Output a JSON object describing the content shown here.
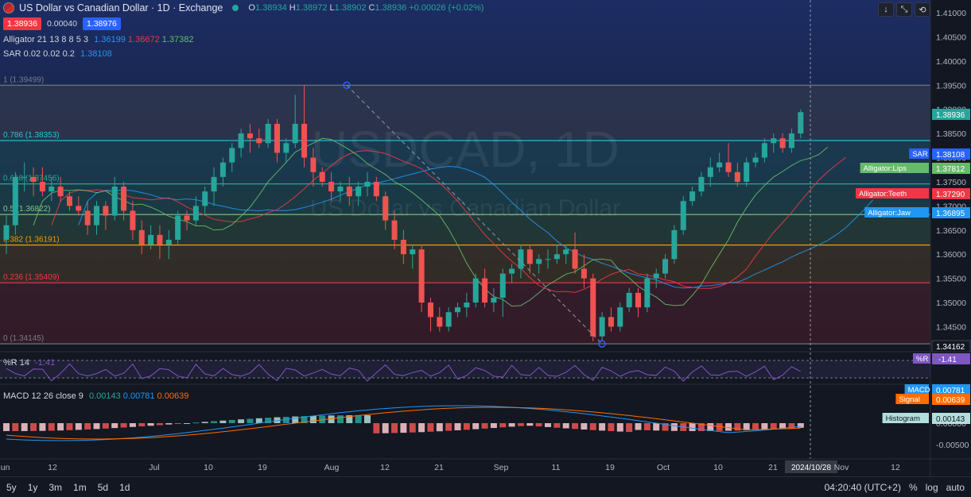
{
  "header": {
    "title": "US Dollar vs Canadian Dollar · 1D · Exchange",
    "open_label": "O",
    "open": "1.38934",
    "high_label": "H",
    "high": "1.38972",
    "low_label": "L",
    "low": "1.38902",
    "close_label": "C",
    "close": "1.38936",
    "change": "+0.00026 (+0.02%)",
    "sell": "1.38936",
    "spread": "0.00040",
    "buy": "1.38976"
  },
  "indicators": {
    "alligator": {
      "label": "Alligator 21 13 8 8 5 3",
      "jaw": "1.36199",
      "teeth": "1.36672",
      "lips": "1.37382"
    },
    "sar": {
      "label": "SAR 0.02 0.02 0.2",
      "value": "1.38108"
    },
    "wr": {
      "label": "%R 14",
      "value": "-1.41",
      "tag": "%R"
    },
    "macd": {
      "label": "MACD 12 26 close 9",
      "hist": "0.00143",
      "macd": "0.00781",
      "signal": "0.00639"
    }
  },
  "watermark": {
    "symbol": "USDCAD, 1D",
    "name": "US Dollar vs Canadian Dollar"
  },
  "colors": {
    "up": "#26a69a",
    "down": "#ef5350",
    "jaw": "#2196f3",
    "teeth": "#f23645",
    "lips": "#66bb6a",
    "wr": "#7e57c2",
    "macd": "#2196f3",
    "signal": "#ff6d00"
  },
  "toolbar": {
    "buttons": [
      "↓",
      "⤡",
      "⟲"
    ]
  },
  "bottom": {
    "ranges": [
      "5y",
      "1y",
      "3m",
      "1m",
      "5d",
      "1d"
    ],
    "time": "04:20:40 (UTC+2)",
    "percent": "%",
    "log": "log",
    "auto": "auto"
  },
  "chart_data": {
    "type": "candlestick",
    "price_axis": [
      "1.41000",
      "1.40500",
      "1.40000",
      "1.39500",
      "1.39000",
      "1.38500",
      "1.38000",
      "1.37500",
      "1.37000",
      "1.36500",
      "1.36000",
      "1.35500",
      "1.35000",
      "1.34500"
    ],
    "time_axis": [
      "Jun",
      "12",
      "Jul",
      "10",
      "19",
      "Aug",
      "12",
      "21",
      "Sep",
      "11",
      "19",
      "Oct",
      "10",
      "21",
      "2024/10/28",
      "Nov",
      "12"
    ],
    "fib_levels": [
      {
        "ratio": "1",
        "price": "1.39499",
        "label": "1 (1.39499)",
        "color": "#787b86"
      },
      {
        "ratio": "0.786",
        "price": "1.38353",
        "label": "0.786 (1.38353)",
        "color": "#26c6da"
      },
      {
        "ratio": "0.618",
        "price": "1.37456",
        "label": "0.618 (1.37456)",
        "color": "#26a69a"
      },
      {
        "ratio": "0.5",
        "price": "1.36822",
        "label": "0.5 (1.36822)",
        "color": "#81c784"
      },
      {
        "ratio": "0.382",
        "price": "1.36191",
        "label": "0.382 (1.36191)",
        "color": "#ff9800"
      },
      {
        "ratio": "0.236",
        "price": "1.35409",
        "label": "0.236 (1.35409)",
        "color": "#f23645"
      },
      {
        "ratio": "0",
        "price": "1.34145",
        "label": "0 (1.34145)",
        "color": "#787b86"
      }
    ],
    "price_tags": [
      {
        "label": "",
        "value": "1.38936",
        "color": "#26a69a"
      },
      {
        "label": "SAR",
        "value": "1.38108",
        "color": "#2962ff"
      },
      {
        "label": "Alligator:Lips",
        "value": "1.37812",
        "color": "#66bb6a"
      },
      {
        "label": "Alligator:Teeth",
        "value": "1.37290",
        "color": "#f23645"
      },
      {
        "label": "Alligator:Jaw",
        "value": "1.36895",
        "color": "#2196f3"
      },
      {
        "label": "",
        "value": "1.34162",
        "color": "#131722"
      }
    ],
    "macd_axis": [
      "0.00000",
      "-0.00500"
    ],
    "macd_tags": [
      {
        "label": "MACD",
        "value": "0.00781",
        "color": "#2196f3"
      },
      {
        "label": "Signal",
        "value": "0.00639",
        "color": "#ff6d00"
      },
      {
        "label": "Histogram",
        "value": "0.00143",
        "color": "#b2dfdb"
      }
    ],
    "candles": [
      [
        1.363,
        1.368,
        1.36,
        1.366
      ],
      [
        1.366,
        1.377,
        1.364,
        1.376
      ],
      [
        1.376,
        1.379,
        1.373,
        1.376
      ],
      [
        1.376,
        1.378,
        1.372,
        1.375
      ],
      [
        1.375,
        1.378,
        1.372,
        1.373
      ],
      [
        1.373,
        1.376,
        1.371,
        1.374
      ],
      [
        1.374,
        1.376,
        1.371,
        1.372
      ],
      [
        1.372,
        1.373,
        1.369,
        1.37
      ],
      [
        1.37,
        1.372,
        1.368,
        1.369
      ],
      [
        1.369,
        1.371,
        1.364,
        1.366
      ],
      [
        1.366,
        1.371,
        1.364,
        1.37
      ],
      [
        1.37,
        1.371,
        1.365,
        1.368
      ],
      [
        1.368,
        1.376,
        1.367,
        1.374
      ],
      [
        1.374,
        1.375,
        1.367,
        1.369
      ],
      [
        1.369,
        1.371,
        1.363,
        1.365
      ],
      [
        1.365,
        1.367,
        1.36,
        1.362
      ],
      [
        1.362,
        1.366,
        1.361,
        1.364
      ],
      [
        1.364,
        1.366,
        1.359,
        1.362
      ],
      [
        1.362,
        1.365,
        1.359,
        1.363
      ],
      [
        1.363,
        1.369,
        1.362,
        1.368
      ],
      [
        1.368,
        1.369,
        1.365,
        1.367
      ],
      [
        1.367,
        1.372,
        1.366,
        1.37
      ],
      [
        1.37,
        1.374,
        1.368,
        1.373
      ],
      [
        1.373,
        1.378,
        1.37,
        1.376
      ],
      [
        1.376,
        1.38,
        1.374,
        1.379
      ],
      [
        1.379,
        1.383,
        1.377,
        1.382
      ],
      [
        1.382,
        1.386,
        1.38,
        1.385
      ],
      [
        1.385,
        1.387,
        1.381,
        1.384
      ],
      [
        1.384,
        1.386,
        1.382,
        1.383
      ],
      [
        1.383,
        1.388,
        1.382,
        1.387
      ],
      [
        1.387,
        1.388,
        1.379,
        1.381
      ],
      [
        1.381,
        1.384,
        1.379,
        1.383
      ],
      [
        1.383,
        1.393,
        1.382,
        1.387
      ],
      [
        1.387,
        1.395,
        1.378,
        1.38
      ],
      [
        1.38,
        1.382,
        1.374,
        1.377
      ],
      [
        1.377,
        1.378,
        1.374,
        1.375
      ],
      [
        1.375,
        1.377,
        1.371,
        1.373
      ],
      [
        1.373,
        1.375,
        1.371,
        1.374
      ],
      [
        1.374,
        1.376,
        1.37,
        1.372
      ],
      [
        1.372,
        1.375,
        1.37,
        1.374
      ],
      [
        1.374,
        1.377,
        1.372,
        1.375
      ],
      [
        1.375,
        1.376,
        1.371,
        1.372
      ],
      [
        1.372,
        1.373,
        1.365,
        1.367
      ],
      [
        1.367,
        1.369,
        1.361,
        1.363
      ],
      [
        1.363,
        1.365,
        1.358,
        1.36
      ],
      [
        1.36,
        1.362,
        1.357,
        1.361
      ],
      [
        1.361,
        1.362,
        1.348,
        1.35
      ],
      [
        1.35,
        1.351,
        1.344,
        1.347
      ],
      [
        1.347,
        1.349,
        1.344,
        1.345
      ],
      [
        1.345,
        1.349,
        1.344,
        1.348
      ],
      [
        1.348,
        1.35,
        1.347,
        1.349
      ],
      [
        1.349,
        1.352,
        1.347,
        1.35
      ],
      [
        1.35,
        1.356,
        1.349,
        1.355
      ],
      [
        1.355,
        1.357,
        1.349,
        1.35
      ],
      [
        1.35,
        1.353,
        1.348,
        1.351
      ],
      [
        1.351,
        1.357,
        1.347,
        1.356
      ],
      [
        1.356,
        1.358,
        1.354,
        1.357
      ],
      [
        1.357,
        1.362,
        1.355,
        1.361
      ],
      [
        1.361,
        1.362,
        1.356,
        1.358
      ],
      [
        1.358,
        1.36,
        1.356,
        1.359
      ],
      [
        1.359,
        1.361,
        1.357,
        1.359
      ],
      [
        1.359,
        1.362,
        1.358,
        1.36
      ],
      [
        1.36,
        1.362,
        1.358,
        1.361
      ],
      [
        1.361,
        1.3645,
        1.356,
        1.357
      ],
      [
        1.357,
        1.36,
        1.353,
        1.355
      ],
      [
        1.355,
        1.356,
        1.342,
        1.343
      ],
      [
        1.343,
        1.348,
        1.342,
        1.347
      ],
      [
        1.347,
        1.349,
        1.344,
        1.345
      ],
      [
        1.345,
        1.35,
        1.344,
        1.349
      ],
      [
        1.349,
        1.353,
        1.348,
        1.352
      ],
      [
        1.352,
        1.353,
        1.347,
        1.349
      ],
      [
        1.349,
        1.356,
        1.348,
        1.355
      ],
      [
        1.355,
        1.357,
        1.353,
        1.356
      ],
      [
        1.356,
        1.36,
        1.355,
        1.359
      ],
      [
        1.359,
        1.366,
        1.358,
        1.365
      ],
      [
        1.365,
        1.372,
        1.364,
        1.371
      ],
      [
        1.371,
        1.374,
        1.37,
        1.373
      ],
      [
        1.373,
        1.377,
        1.372,
        1.376
      ],
      [
        1.376,
        1.38,
        1.374,
        1.378
      ],
      [
        1.378,
        1.381,
        1.377,
        1.379
      ],
      [
        1.379,
        1.383,
        1.376,
        1.377
      ],
      [
        1.377,
        1.379,
        1.374,
        1.375
      ],
      [
        1.375,
        1.38,
        1.374,
        1.379
      ],
      [
        1.379,
        1.381,
        1.378,
        1.38
      ],
      [
        1.38,
        1.384,
        1.379,
        1.383
      ],
      [
        1.383,
        1.385,
        1.381,
        1.384
      ],
      [
        1.384,
        1.385,
        1.381,
        1.382
      ],
      [
        1.382,
        1.386,
        1.381,
        1.385
      ],
      [
        1.385,
        1.39,
        1.384,
        1.3894
      ]
    ]
  }
}
